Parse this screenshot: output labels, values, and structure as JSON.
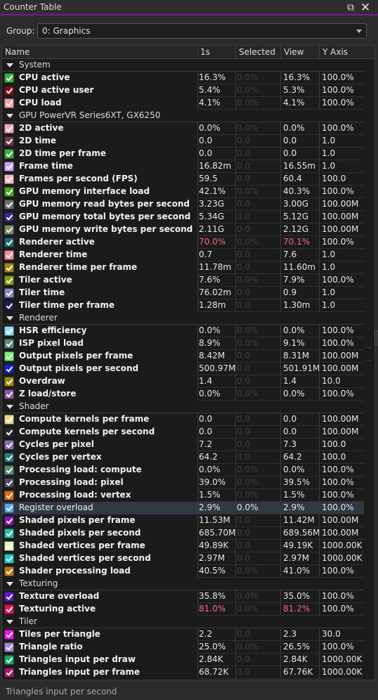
{
  "window": {
    "title": "Counter Table",
    "restore_icon": "restore-icon",
    "close_icon": "close-icon"
  },
  "group_selector": {
    "label": "Group:",
    "value": "0: Graphics"
  },
  "table": {
    "columns": [
      "Name",
      "1s",
      "Selected",
      "View",
      "Y Axis"
    ],
    "rows": [
      {
        "type": "group",
        "name": "System"
      },
      {
        "type": "counter",
        "name": "CPU active",
        "color": "#3cb043",
        "v1": "16.3%",
        "sel": "0.0%",
        "view": "16.3%",
        "yaxis": "100.0%"
      },
      {
        "type": "counter",
        "name": "CPU active user",
        "color": "#7a1220",
        "v1": "5.4%",
        "sel": "0.0%",
        "view": "5.3%",
        "yaxis": "100.0%"
      },
      {
        "type": "counter",
        "name": "CPU load",
        "color": "#f2a0a8",
        "v1": "4.1%",
        "sel": "0.0%",
        "view": "4.1%",
        "yaxis": "100.0%"
      },
      {
        "type": "group",
        "name": "GPU PowerVR Series6XT, GX6250"
      },
      {
        "type": "counter",
        "name": "2D active",
        "color": "#f0a8b4",
        "v1": "0.0%",
        "sel": "0.0%",
        "view": "0.0%",
        "yaxis": "100.0%"
      },
      {
        "type": "counter",
        "name": "2D time",
        "color": "#6b3a4a",
        "v1": "0.0",
        "sel": "0.0",
        "view": "0.0",
        "yaxis": "1.0"
      },
      {
        "type": "counter",
        "name": "2D time per frame",
        "color": "#3cb043",
        "v1": "0.0",
        "sel": "0.0",
        "view": "0.0",
        "yaxis": "1.0"
      },
      {
        "type": "counter",
        "name": "Frame time",
        "color": "#c6a6f0",
        "v1": "16.82m",
        "sel": "0.0",
        "view": "16.55m",
        "yaxis": "1.0"
      },
      {
        "type": "counter",
        "name": "Frames per second (FPS)",
        "color": "#f5b6bf",
        "v1": "59.5",
        "sel": "0.0",
        "view": "60.4",
        "yaxis": "100.0"
      },
      {
        "type": "counter",
        "name": "GPU memory interface load",
        "color": "#52a324",
        "v1": "42.1%",
        "sel": "0.0%",
        "view": "40.3%",
        "yaxis": "100.0%"
      },
      {
        "type": "counter",
        "name": "GPU memory read bytes per second",
        "color": "#6b6f6f",
        "v1": "3.23G",
        "sel": "0.0",
        "view": "3.00G",
        "yaxis": "100.00M"
      },
      {
        "type": "counter",
        "name": "GPU memory total bytes per second",
        "color": "#3a2a8a",
        "v1": "5.34G",
        "sel": "0.0",
        "view": "5.12G",
        "yaxis": "100.00M"
      },
      {
        "type": "counter",
        "name": "GPU memory write bytes per second",
        "color": "#7a8a66",
        "v1": "2.11G",
        "sel": "0.0",
        "view": "2.12G",
        "yaxis": "100.00M"
      },
      {
        "type": "counter",
        "name": "Renderer active",
        "color": "#1f6b74",
        "v1": "70.0%",
        "sel": "0.0%",
        "view": "70.1%",
        "yaxis": "100.0%",
        "hot": true
      },
      {
        "type": "counter",
        "name": "Renderer time",
        "color": "#f08aa0",
        "v1": "0.7",
        "sel": "0.0",
        "view": "7.6",
        "yaxis": "1.0"
      },
      {
        "type": "counter",
        "name": "Renderer time per frame",
        "color": "#9a8a10",
        "v1": "11.78m",
        "sel": "0.0",
        "view": "11.60m",
        "yaxis": "1.0"
      },
      {
        "type": "counter",
        "name": "Tiler active",
        "color": "#8a9a18",
        "v1": "7.6%",
        "sel": "0.0%",
        "view": "7.9%",
        "yaxis": "100.0%"
      },
      {
        "type": "counter",
        "name": "Tiler time",
        "color": "#8a8ac8",
        "v1": "76.02m",
        "sel": "0.0",
        "view": "0.9",
        "yaxis": "1.0"
      },
      {
        "type": "counter",
        "name": "Tiler time per frame",
        "color": "#241a5a",
        "v1": "1.28m",
        "sel": "0.0",
        "view": "1.30m",
        "yaxis": "1.0"
      },
      {
        "type": "group",
        "name": "Renderer"
      },
      {
        "type": "counter",
        "name": "HSR efficiency",
        "color": "#8fd8f0",
        "v1": "0.0%",
        "sel": "0.0%",
        "view": "0.0%",
        "yaxis": "100.0%"
      },
      {
        "type": "counter",
        "name": "ISP pixel load",
        "color": "#5a8a7a",
        "v1": "8.9%",
        "sel": "0.0%",
        "view": "9.1%",
        "yaxis": "100.0%"
      },
      {
        "type": "counter",
        "name": "Output pixels per frame",
        "color": "#7cf07c",
        "v1": "8.42M",
        "sel": "0.0",
        "view": "8.31M",
        "yaxis": "100.00M"
      },
      {
        "type": "counter",
        "name": "Output pixels per second",
        "color": "#1a22c8",
        "v1": "500.97M",
        "sel": "0.0",
        "view": "501.91M",
        "yaxis": "100.00M"
      },
      {
        "type": "counter",
        "name": "Overdraw",
        "color": "#9a8a10",
        "v1": "1.4",
        "sel": "0.0",
        "view": "1.4",
        "yaxis": "10.0"
      },
      {
        "type": "counter",
        "name": "Z load/store",
        "color": "#8a5a9a",
        "v1": "0.0%",
        "sel": "0.0%",
        "view": "0.0%",
        "yaxis": "100.0%"
      },
      {
        "type": "group",
        "name": "Shader"
      },
      {
        "type": "counter",
        "name": "Compute kernels per frame",
        "color": "#e8d890",
        "v1": "0.0",
        "sel": "0.0",
        "view": "0.0",
        "yaxis": "100.00M"
      },
      {
        "type": "counter",
        "name": "Compute kernels per second",
        "color": "#2a2a2a",
        "v1": "0.0",
        "sel": "0.0",
        "view": "0.0",
        "yaxis": "100.00M"
      },
      {
        "type": "counter",
        "name": "Cycles per pixel",
        "color": "#8a6aa8",
        "v1": "7.2",
        "sel": "0.0",
        "view": "7.3",
        "yaxis": "100.0"
      },
      {
        "type": "counter",
        "name": "Cycles per vertex",
        "color": "#2a7a7a",
        "v1": "64.2",
        "sel": "0.0",
        "view": "64.2",
        "yaxis": "100.0"
      },
      {
        "type": "counter",
        "name": "Processing load: compute",
        "color": "#5a8a7a",
        "v1": "0.0%",
        "sel": "0.0%",
        "view": "0.0%",
        "yaxis": "100.0%"
      },
      {
        "type": "counter",
        "name": "Processing load: pixel",
        "color": "#4a4a6a",
        "v1": "39.0%",
        "sel": "0.0%",
        "view": "39.5%",
        "yaxis": "100.0%"
      },
      {
        "type": "counter",
        "name": "Processing load: vertex",
        "color": "#d86a18",
        "v1": "1.5%",
        "sel": "0.0%",
        "view": "1.5%",
        "yaxis": "100.0%"
      },
      {
        "type": "counter",
        "name": "Register overload",
        "color": "#5aa8e8",
        "v1": "2.9%",
        "sel": "0.0%",
        "view": "2.9%",
        "yaxis": "100.0%",
        "selected": true,
        "plain": true
      },
      {
        "type": "counter",
        "name": "Shaded pixels per frame",
        "color": "#7a1aa8",
        "v1": "11.53M",
        "sel": "0.0",
        "view": "11.42M",
        "yaxis": "100.00M"
      },
      {
        "type": "counter",
        "name": "Shaded pixels per second",
        "color": "#2ab8a8",
        "v1": "685.70M",
        "sel": "0.0",
        "view": "689.56M",
        "yaxis": "100.00M"
      },
      {
        "type": "counter",
        "name": "Shaded vertices per frame",
        "color": "#d8f8b8",
        "v1": "49.89K",
        "sel": "0.0",
        "view": "49.19K",
        "yaxis": "1000.00K"
      },
      {
        "type": "counter",
        "name": "Shaded vertices per second",
        "color": "#20c8c0",
        "v1": "2.97M",
        "sel": "0.0",
        "view": "2.97M",
        "yaxis": "1000.00K"
      },
      {
        "type": "counter",
        "name": "Shader processing load",
        "color": "#b87a18",
        "v1": "40.5%",
        "sel": "0.0%",
        "view": "41.0%",
        "yaxis": "100.0%"
      },
      {
        "type": "group",
        "name": "Texturing"
      },
      {
        "type": "counter",
        "name": "Texture overload",
        "color": "#5a1ac8",
        "v1": "35.8%",
        "sel": "0.0%",
        "view": "35.0%",
        "yaxis": "100.0%"
      },
      {
        "type": "counter",
        "name": "Texturing active",
        "color": "#d81a5a",
        "v1": "81.0%",
        "sel": "0.0%",
        "view": "81.2%",
        "yaxis": "100.0%",
        "hot": true
      },
      {
        "type": "group",
        "name": "Tiler"
      },
      {
        "type": "counter",
        "name": "Tiles per triangle",
        "color": "#e81ae8",
        "v1": "2.2",
        "sel": "0.0",
        "view": "2.3",
        "yaxis": "30.0"
      },
      {
        "type": "counter",
        "name": "Triangle ratio",
        "color": "#9a8ad8",
        "v1": "25.0%",
        "sel": "0.0%",
        "view": "26.5%",
        "yaxis": "100.0%"
      },
      {
        "type": "counter",
        "name": "Triangles input per draw",
        "color": "#1aa86a",
        "v1": "2.84K",
        "sel": "0.0",
        "view": "2.84K",
        "yaxis": "1000.00K"
      },
      {
        "type": "counter",
        "name": "Triangles input per frame",
        "color": "#a81a6a",
        "v1": "68.72K",
        "sel": "0.0",
        "view": "67.76K",
        "yaxis": "1000.00K"
      }
    ]
  },
  "status": {
    "text": "Triangles input per second"
  }
}
